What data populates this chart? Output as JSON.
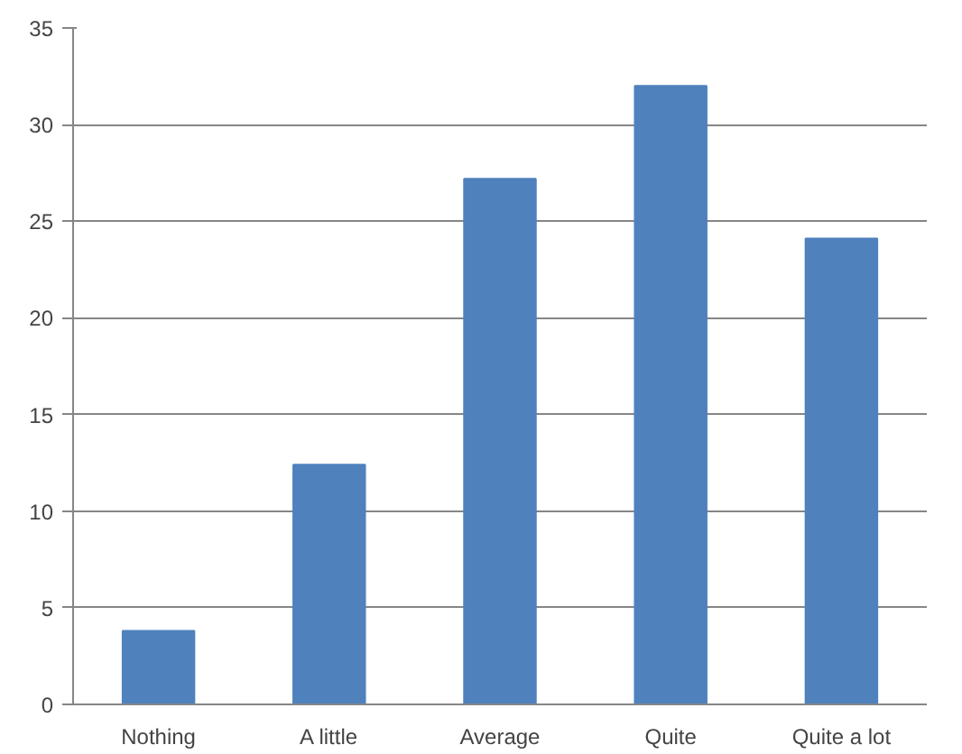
{
  "chart_data": {
    "type": "bar",
    "categories": [
      "Nothing",
      "A little",
      "Average",
      "Quite",
      "Quite a lot"
    ],
    "values": [
      3.8,
      12.4,
      27.2,
      32,
      24.1
    ],
    "color": "#4f81bd",
    "ylim": [
      0,
      35
    ],
    "yticks": [
      0,
      5,
      10,
      15,
      20,
      25,
      30,
      35
    ],
    "grid": "y"
  }
}
